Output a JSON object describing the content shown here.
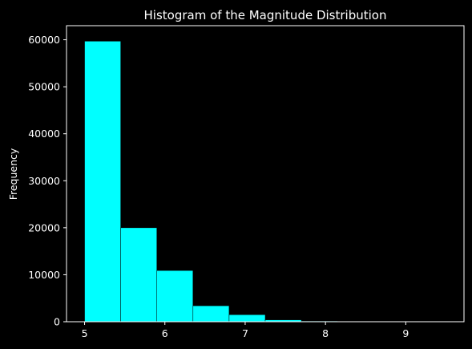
{
  "chart_data": {
    "type": "bar",
    "subtype": "histogram",
    "title": "Histogram of the Magnitude Distribution",
    "xlabel": "",
    "ylabel": "Frequency",
    "xlim": [
      4.775,
      9.725
    ],
    "ylim": [
      0,
      63000
    ],
    "xticks": [
      5,
      6,
      7,
      8,
      9
    ],
    "yticks": [
      0,
      10000,
      20000,
      30000,
      40000,
      50000,
      60000
    ],
    "bins": [
      {
        "x0": 5.0,
        "x1": 5.45,
        "value": 59700
      },
      {
        "x0": 5.45,
        "x1": 5.9,
        "value": 20000
      },
      {
        "x0": 5.9,
        "x1": 6.35,
        "value": 10900
      },
      {
        "x0": 6.35,
        "x1": 6.8,
        "value": 3400
      },
      {
        "x0": 6.8,
        "x1": 7.25,
        "value": 1500
      },
      {
        "x0": 7.25,
        "x1": 7.7,
        "value": 400
      },
      {
        "x0": 7.7,
        "x1": 8.15,
        "value": 150
      },
      {
        "x0": 8.15,
        "x1": 8.6,
        "value": 50
      },
      {
        "x0": 8.6,
        "x1": 9.05,
        "value": 15
      },
      {
        "x0": 9.05,
        "x1": 9.5,
        "value": 5
      }
    ],
    "grid": false,
    "legend": "none",
    "colors": {
      "background": "#000000",
      "bar": "#00ffff",
      "bar_edge": "#000000",
      "axes": "#ffffff",
      "text": "#ffffff"
    }
  }
}
